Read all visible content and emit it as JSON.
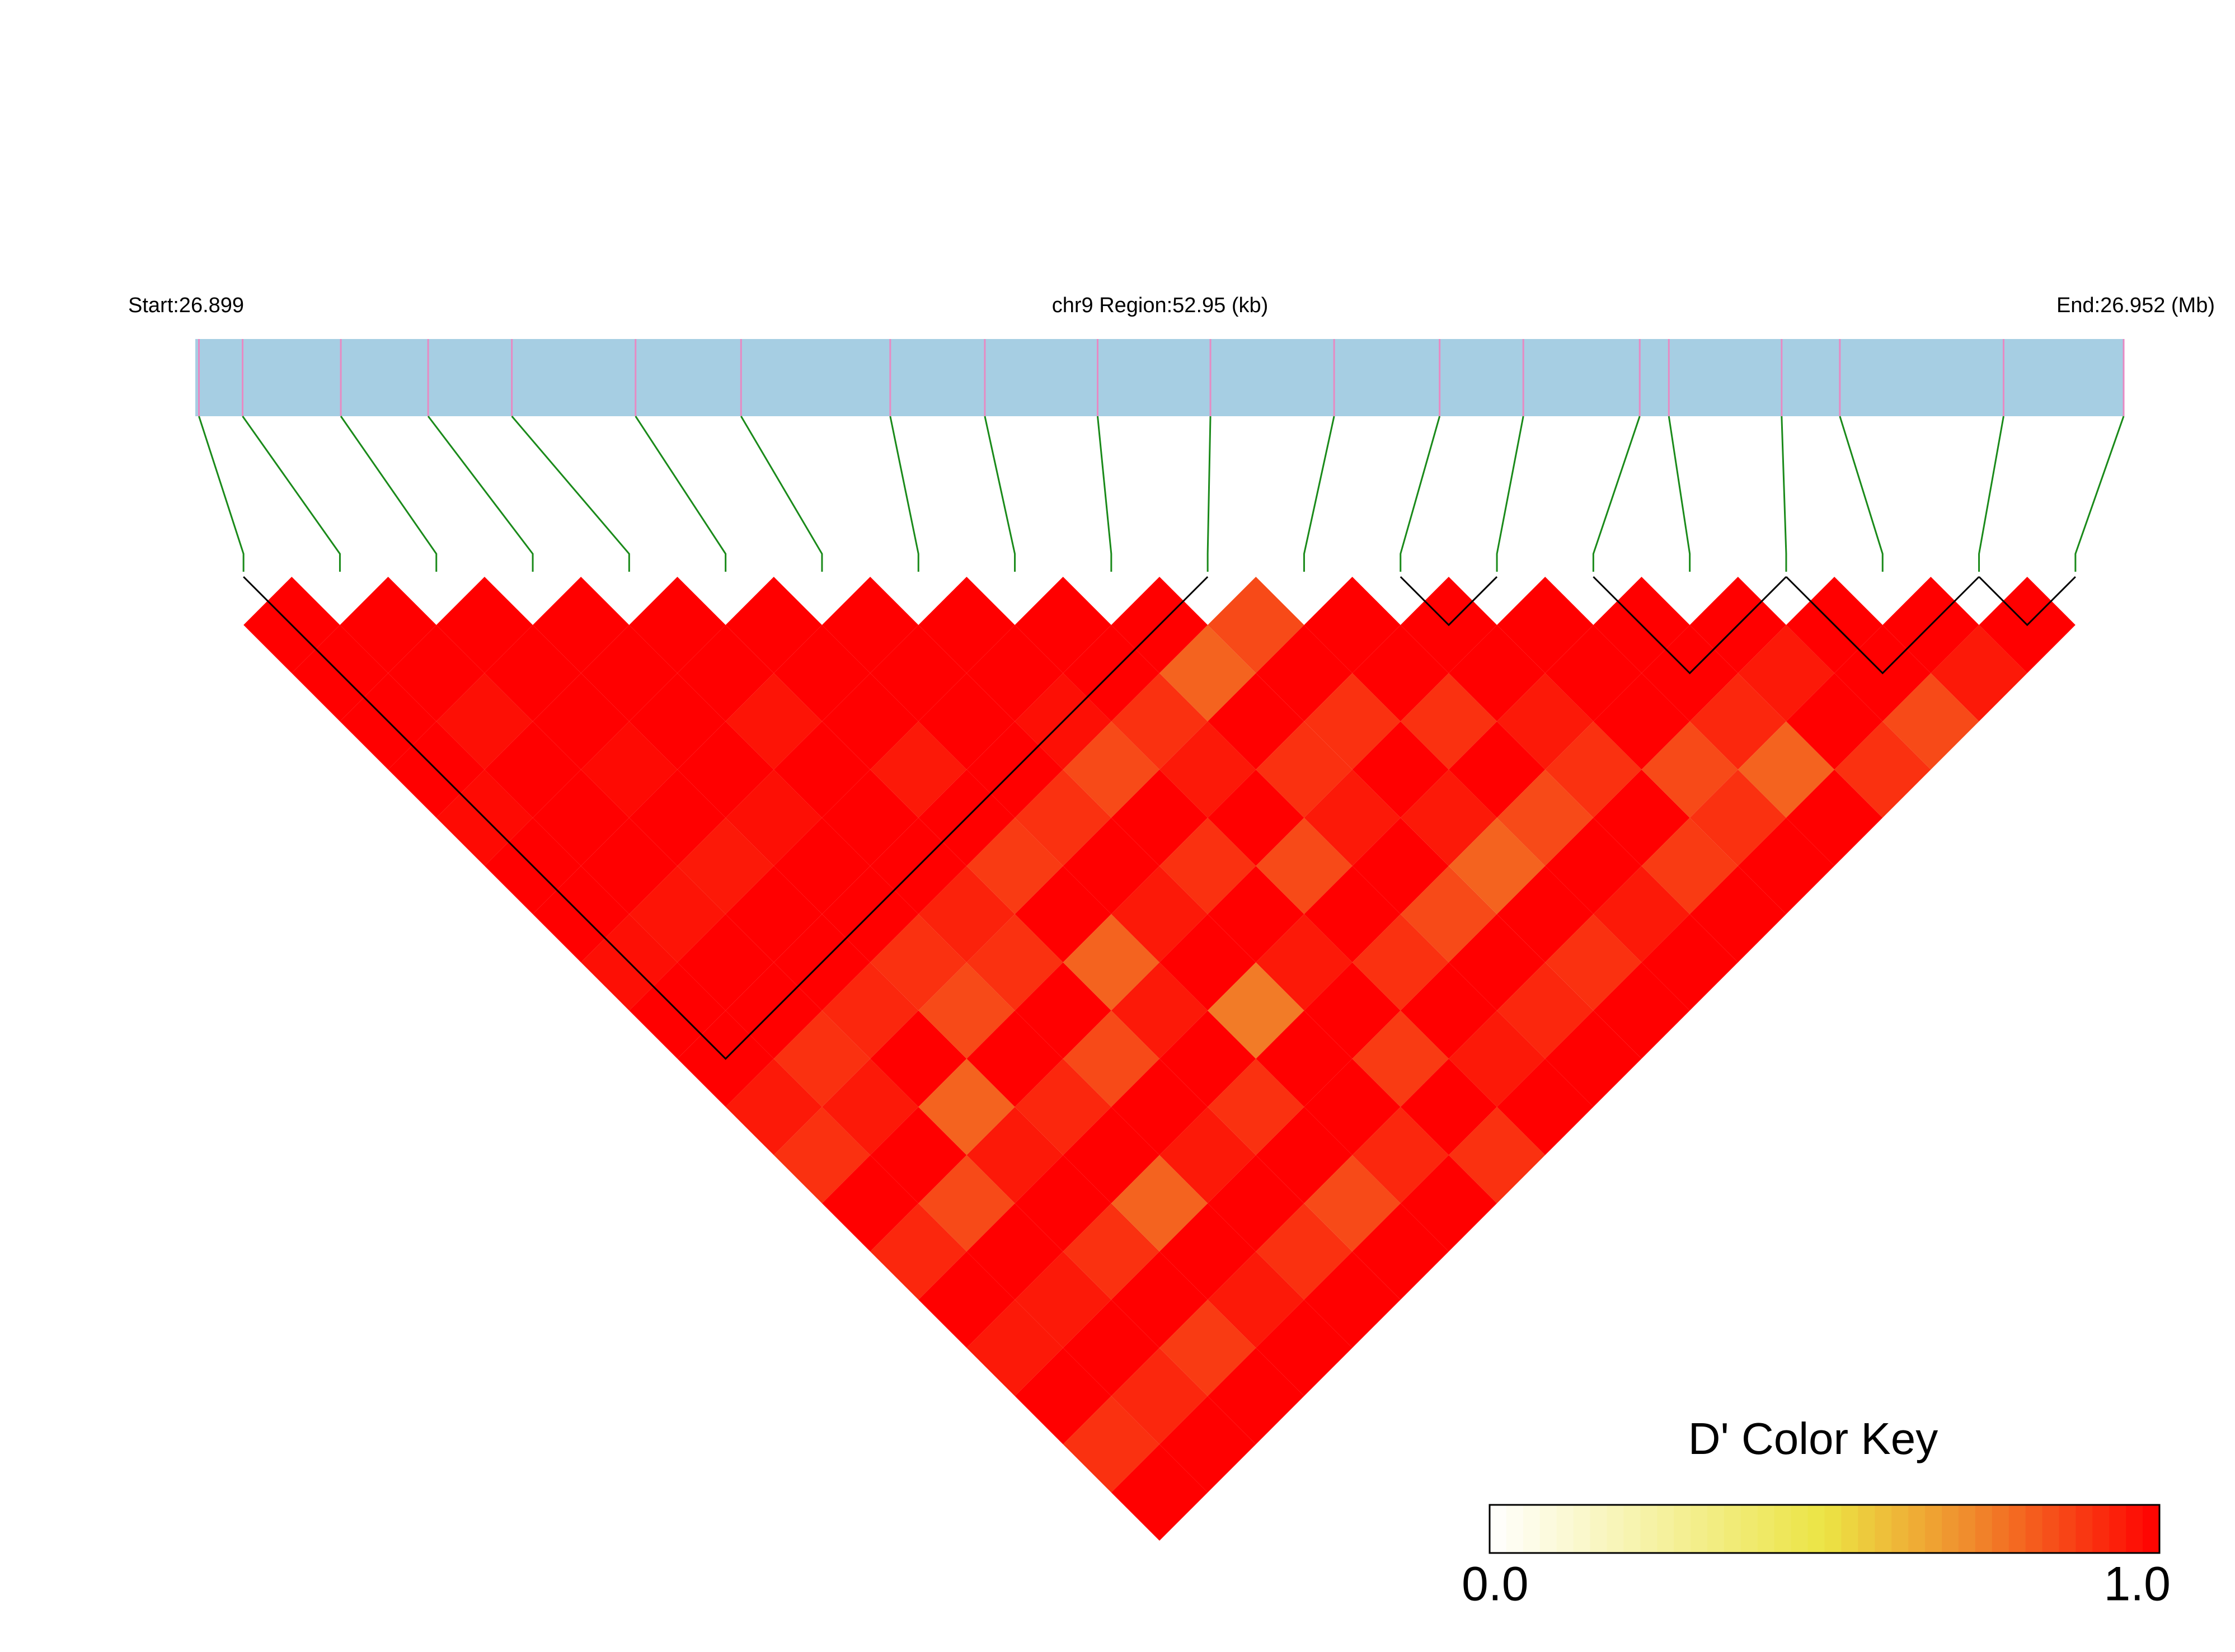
{
  "chart_data": {
    "type": "ld-heatmap",
    "start_label": "Start:26.899",
    "region_label": "chr9 Region:52.95 (kb)",
    "end_label": "End:26.952 (Mb)",
    "xlim": [
      26.899,
      26.952
    ],
    "snp_positions": [
      26.8991,
      26.9003,
      26.903,
      26.9054,
      26.9077,
      26.9111,
      26.914,
      26.9181,
      26.9207,
      26.9238,
      26.9269,
      26.9303,
      26.9332,
      26.9355,
      26.9387,
      26.9395,
      26.9426,
      26.9442,
      26.9487,
      26.952
    ],
    "dprime": [
      [
        1,
        1,
        1,
        1,
        0.98,
        1,
        1,
        0.97,
        1,
        1,
        0.95,
        0.9,
        1,
        0.92,
        1,
        0.95,
        1,
        0.9,
        1
      ],
      [
        1,
        1,
        0.97,
        1,
        1,
        1,
        0.96,
        1,
        1,
        0.9,
        0.95,
        1,
        0.85,
        1,
        0.95,
        1,
        0.92,
        1
      ],
      [
        1,
        1,
        1,
        0.98,
        1,
        0.95,
        1,
        1,
        0.92,
        1,
        0.8,
        0.95,
        1,
        0.9,
        1,
        0.88,
        1
      ],
      [
        1,
        1,
        1,
        1,
        0.97,
        1,
        1,
        0.9,
        0.85,
        1,
        0.92,
        1,
        0.8,
        1,
        0.95,
        1
      ],
      [
        1,
        1,
        0.96,
        1,
        1,
        1,
        0.93,
        0.9,
        1,
        0.85,
        1,
        0.95,
        1,
        0.9,
        1
      ],
      [
        1,
        1,
        1,
        0.95,
        1,
        0.88,
        1,
        0.8,
        0.95,
        1,
        0.9,
        1,
        0.85,
        1
      ],
      [
        1,
        1,
        1,
        1,
        0.9,
        1,
        0.95,
        1,
        0.75,
        1,
        1,
        0.92,
        1
      ],
      [
        1,
        1,
        0.97,
        0.85,
        1,
        0.9,
        1,
        0.95,
        1,
        0.88,
        1,
        0.9
      ],
      [
        1,
        1,
        0.9,
        0.95,
        1,
        0.85,
        1,
        0.9,
        1,
        0.95,
        1
      ],
      [
        1,
        0.8,
        1,
        0.9,
        0.95,
        1,
        0.85,
        1,
        0.92,
        1
      ],
      [
        0.85,
        1,
        0.9,
        1,
        0.95,
        0.8,
        1,
        0.9,
        1
      ],
      [
        1,
        1,
        0.9,
        1,
        0.85,
        1,
        0.95,
        1
      ],
      [
        1,
        1,
        0.95,
        0.9,
        1,
        0.88,
        1
      ],
      [
        1,
        1,
        1,
        0.85,
        0.9,
        1
      ],
      [
        1,
        1,
        0.92,
        0.8,
        1
      ],
      [
        1,
        0.95,
        1,
        0.9
      ],
      [
        1,
        1,
        0.85
      ],
      [
        1,
        0.95
      ],
      [
        1
      ]
    ],
    "blocks": [
      [
        0,
        10
      ],
      [
        12,
        13
      ],
      [
        14,
        16
      ],
      [
        16,
        18
      ],
      [
        18,
        19
      ]
    ],
    "colorscale": [
      [
        0,
        "#ffffff"
      ],
      [
        0.5,
        "#ece444"
      ],
      [
        0.72,
        "#f08a2c"
      ],
      [
        1,
        "#ff0000"
      ]
    ],
    "colorkey_title": "D' Color Key",
    "colorkey_ticks": [
      {
        "value": 0,
        "label": "0.0"
      },
      {
        "value": 1,
        "label": "1.0"
      }
    ]
  }
}
